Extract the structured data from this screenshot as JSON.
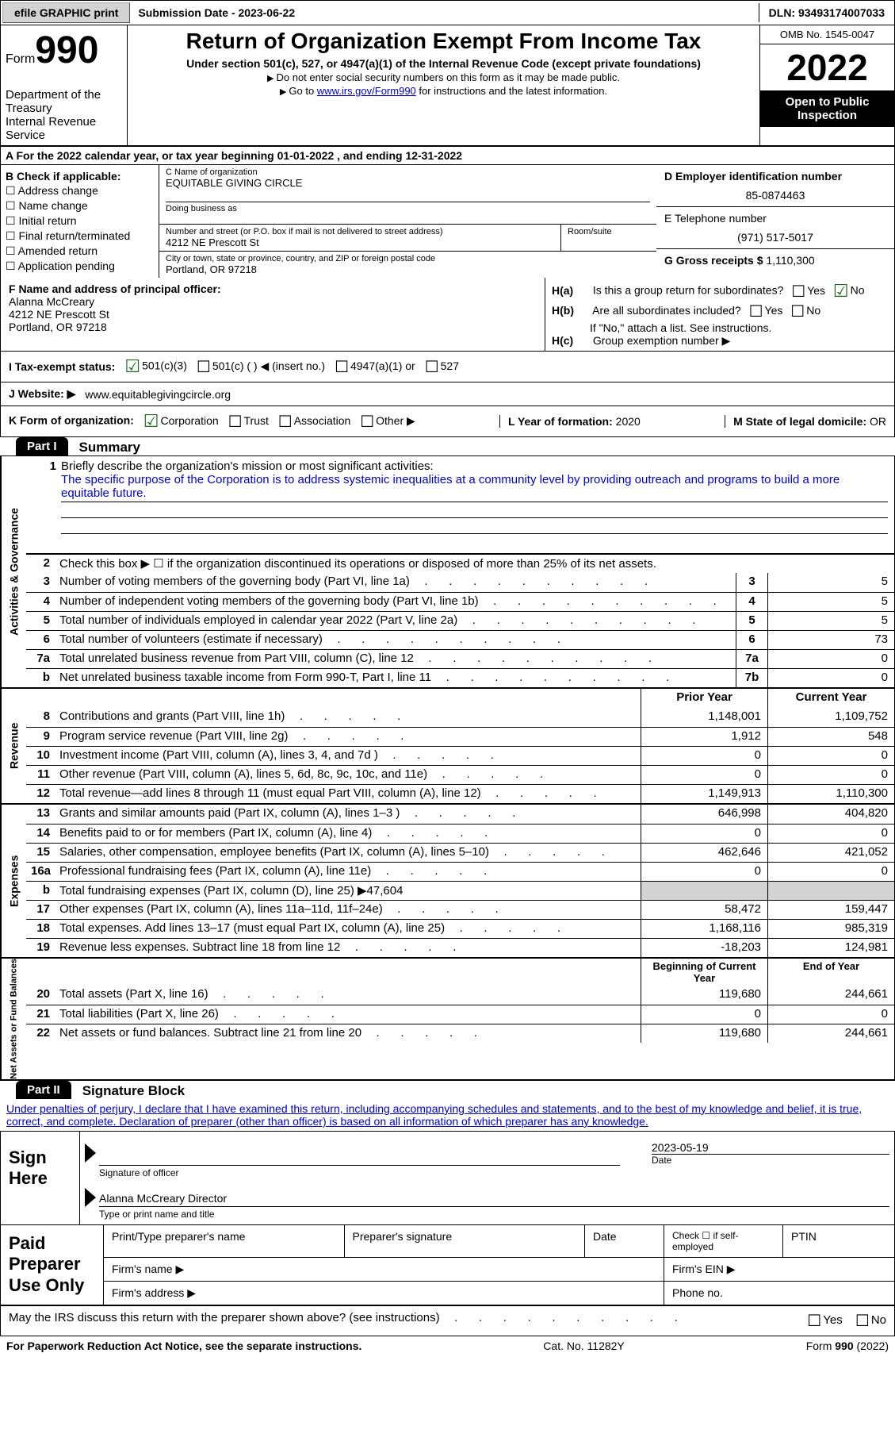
{
  "topbar": {
    "efile": "efile GRAPHIC print",
    "submission": "Submission Date - 2023-06-22",
    "dln": "DLN: 93493174007033"
  },
  "header": {
    "form_word": "Form",
    "form_num": "990",
    "title": "Return of Organization Exempt From Income Tax",
    "subtitle": "Under section 501(c), 527, or 4947(a)(1) of the Internal Revenue Code (except private foundations)",
    "note1": "Do not enter social security numbers on this form as it may be made public.",
    "note2_pre": "Go to ",
    "note2_link": "www.irs.gov/Form990",
    "note2_post": " for instructions and the latest information.",
    "dept": "Department of the Treasury",
    "irs": "Internal Revenue Service",
    "omb": "OMB No. 1545-0047",
    "year": "2022",
    "inspection": "Open to Public Inspection"
  },
  "line_a": "A For the 2022 calendar year, or tax year beginning 01-01-2022    , and ending 12-31-2022",
  "col_b": {
    "title": "B Check if applicable:",
    "items": [
      "Address change",
      "Name change",
      "Initial return",
      "Final return/terminated",
      "Amended return",
      "Application pending"
    ]
  },
  "entity": {
    "c_label": "C Name of organization",
    "c_name": "EQUITABLE GIVING CIRCLE",
    "dba_label": "Doing business as",
    "addr_label": "Number and street (or P.O. box if mail is not delivered to street address)",
    "room_label": "Room/suite",
    "addr": "4212 NE Prescott St",
    "city_label": "City or town, state or province, country, and ZIP or foreign postal code",
    "city": "Portland, OR  97218",
    "d_label": "D Employer identification number",
    "ein": "85-0874463",
    "e_label": "E Telephone number",
    "phone": "(971) 517-5017",
    "g_label": "G Gross receipts $",
    "gross": "1,110,300"
  },
  "fg": {
    "f_label": "F Name and address of principal officer:",
    "f_name": "Alanna McCreary",
    "f_addr1": "4212 NE Prescott St",
    "f_addr2": "Portland, OR  97218",
    "ha_label": "H(a)",
    "ha_text": "Is this a group return for subordinates?",
    "hb_label": "H(b)",
    "hb_text": "Are all subordinates included?",
    "hb_note": "If \"No,\" attach a list. See instructions.",
    "hc_label": "H(c)",
    "hc_text": "Group exemption number ▶",
    "yes": "Yes",
    "no": "No"
  },
  "status": {
    "i_label": "I   Tax-exempt status:",
    "opts": [
      "501(c)(3)",
      "501(c) (  ) ◀ (insert no.)",
      "4947(a)(1) or",
      "527"
    ]
  },
  "website": {
    "j_label": "J   Website: ▶",
    "url": "www.equitablegivingcircle.org"
  },
  "korg": {
    "k_label": "K Form of organization:",
    "opts": [
      "Corporation",
      "Trust",
      "Association",
      "Other ▶"
    ],
    "l_label": "L Year of formation:",
    "l_val": "2020",
    "m_label": "M State of legal domicile:",
    "m_val": "OR"
  },
  "part1": {
    "tag": "Part I",
    "title": "Summary",
    "mission_label": "Briefly describe the organization's mission or most significant activities:",
    "mission": "The specific purpose of the Corporation is to address systemic inequalities at a community level by providing outreach and programs to build a more equitable future.",
    "line2": "Check this box ▶ ☐  if the organization discontinued its operations or disposed of more than 25% of its net assets."
  },
  "vtabs": {
    "gov": "Activities & Governance",
    "rev": "Revenue",
    "exp": "Expenses",
    "net": "Net Assets or Fund Balances"
  },
  "rows_gov": [
    {
      "n": "3",
      "d": "Number of voting members of the governing body (Part VI, line 1a)",
      "b": "3",
      "v": "5"
    },
    {
      "n": "4",
      "d": "Number of independent voting members of the governing body (Part VI, line 1b)",
      "b": "4",
      "v": "5"
    },
    {
      "n": "5",
      "d": "Total number of individuals employed in calendar year 2022 (Part V, line 2a)",
      "b": "5",
      "v": "5"
    },
    {
      "n": "6",
      "d": "Total number of volunteers (estimate if necessary)",
      "b": "6",
      "v": "73"
    },
    {
      "n": "7a",
      "d": "Total unrelated business revenue from Part VIII, column (C), line 12",
      "b": "7a",
      "v": "0"
    },
    {
      "n": "b",
      "d": "Net unrelated business taxable income from Form 990-T, Part I, line 11",
      "b": "7b",
      "v": "0"
    }
  ],
  "col_headers": {
    "prior": "Prior Year",
    "current": "Current Year"
  },
  "rows_rev": [
    {
      "n": "8",
      "d": "Contributions and grants (Part VIII, line 1h)",
      "p": "1,148,001",
      "c": "1,109,752"
    },
    {
      "n": "9",
      "d": "Program service revenue (Part VIII, line 2g)",
      "p": "1,912",
      "c": "548"
    },
    {
      "n": "10",
      "d": "Investment income (Part VIII, column (A), lines 3, 4, and 7d )",
      "p": "0",
      "c": "0"
    },
    {
      "n": "11",
      "d": "Other revenue (Part VIII, column (A), lines 5, 6d, 8c, 9c, 10c, and 11e)",
      "p": "0",
      "c": "0"
    },
    {
      "n": "12",
      "d": "Total revenue—add lines 8 through 11 (must equal Part VIII, column (A), line 12)",
      "p": "1,149,913",
      "c": "1,110,300"
    }
  ],
  "rows_exp": [
    {
      "n": "13",
      "d": "Grants and similar amounts paid (Part IX, column (A), lines 1–3 )",
      "p": "646,998",
      "c": "404,820"
    },
    {
      "n": "14",
      "d": "Benefits paid to or for members (Part IX, column (A), line 4)",
      "p": "0",
      "c": "0"
    },
    {
      "n": "15",
      "d": "Salaries, other compensation, employee benefits (Part IX, column (A), lines 5–10)",
      "p": "462,646",
      "c": "421,052"
    },
    {
      "n": "16a",
      "d": "Professional fundraising fees (Part IX, column (A), line 11e)",
      "p": "0",
      "c": "0"
    },
    {
      "n": "b",
      "d": "Total fundraising expenses (Part IX, column (D), line 25) ▶47,604",
      "p": "",
      "c": "",
      "shade": true
    },
    {
      "n": "17",
      "d": "Other expenses (Part IX, column (A), lines 11a–11d, 11f–24e)",
      "p": "58,472",
      "c": "159,447"
    },
    {
      "n": "18",
      "d": "Total expenses. Add lines 13–17 (must equal Part IX, column (A), line 25)",
      "p": "1,168,116",
      "c": "985,319"
    },
    {
      "n": "19",
      "d": "Revenue less expenses. Subtract line 18 from line 12",
      "p": "-18,203",
      "c": "124,981"
    }
  ],
  "net_headers": {
    "begin": "Beginning of Current Year",
    "end": "End of Year"
  },
  "rows_net": [
    {
      "n": "20",
      "d": "Total assets (Part X, line 16)",
      "p": "119,680",
      "c": "244,661"
    },
    {
      "n": "21",
      "d": "Total liabilities (Part X, line 26)",
      "p": "0",
      "c": "0"
    },
    {
      "n": "22",
      "d": "Net assets or fund balances. Subtract line 21 from line 20",
      "p": "119,680",
      "c": "244,661"
    }
  ],
  "part2": {
    "tag": "Part II",
    "title": "Signature Block",
    "penalties": "Under penalties of perjury, I declare that I have examined this return, including accompanying schedules and statements, and to the best of my knowledge and belief, it is true, correct, and complete. Declaration of preparer (other than officer) is based on all information of which preparer has any knowledge."
  },
  "sign": {
    "label": "Sign Here",
    "sig_label": "Signature of officer",
    "date": "2023-05-19",
    "date_label": "Date",
    "name": "Alanna McCreary  Director",
    "name_label": "Type or print name and title"
  },
  "prep": {
    "label": "Paid Preparer Use Only",
    "print_label": "Print/Type preparer's name",
    "sig_label": "Preparer's signature",
    "date_label": "Date",
    "self_label": "Check ☐  if self-employed",
    "ptin_label": "PTIN",
    "firm_name": "Firm's name    ▶",
    "firm_ein": "Firm's EIN ▶",
    "firm_addr": "Firm's address ▶",
    "phone": "Phone no."
  },
  "discuss": "May the IRS discuss this return with the preparer shown above? (see instructions)",
  "footer": {
    "left": "For Paperwork Reduction Act Notice, see the separate instructions.",
    "center": "Cat. No. 11282Y",
    "right": "Form 990 (2022)"
  }
}
